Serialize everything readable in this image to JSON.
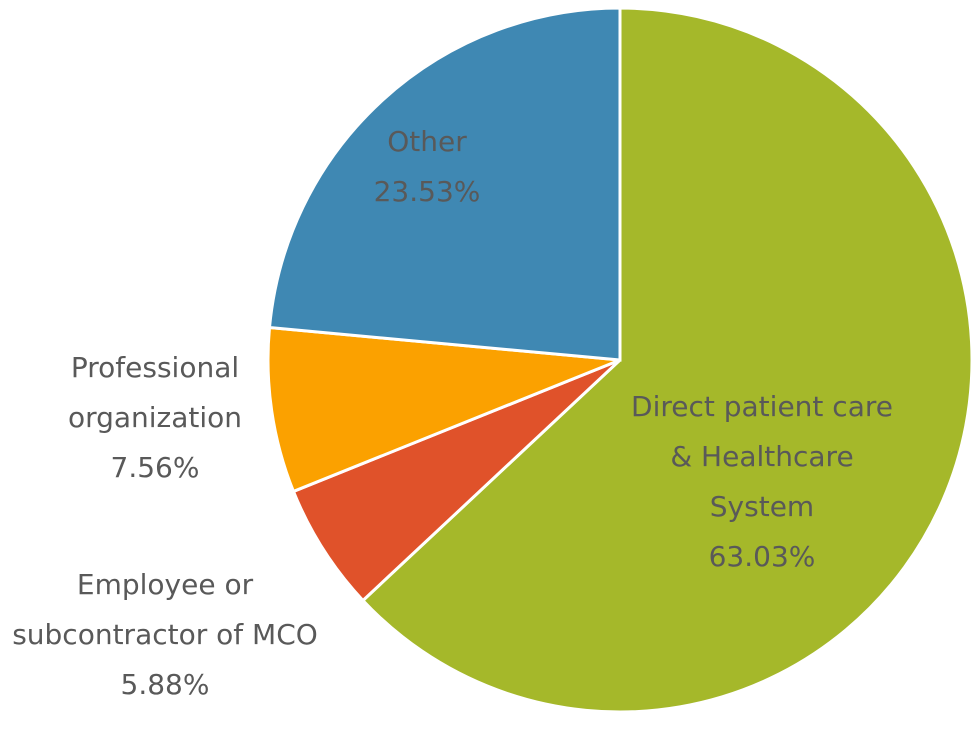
{
  "chart_data": {
    "type": "pie",
    "categories": [
      "Direct patient care & Healthcare System",
      "Employee or subcontractor of MCO",
      "Professional organization",
      "Other"
    ],
    "values": [
      63.03,
      5.88,
      7.56,
      23.53
    ],
    "value_labels": [
      "63.03%",
      "5.88%",
      "7.56%",
      "23.53%"
    ],
    "colors": [
      "#a5b82a",
      "#e0522a",
      "#fba100",
      "#3f88b3"
    ]
  }
}
